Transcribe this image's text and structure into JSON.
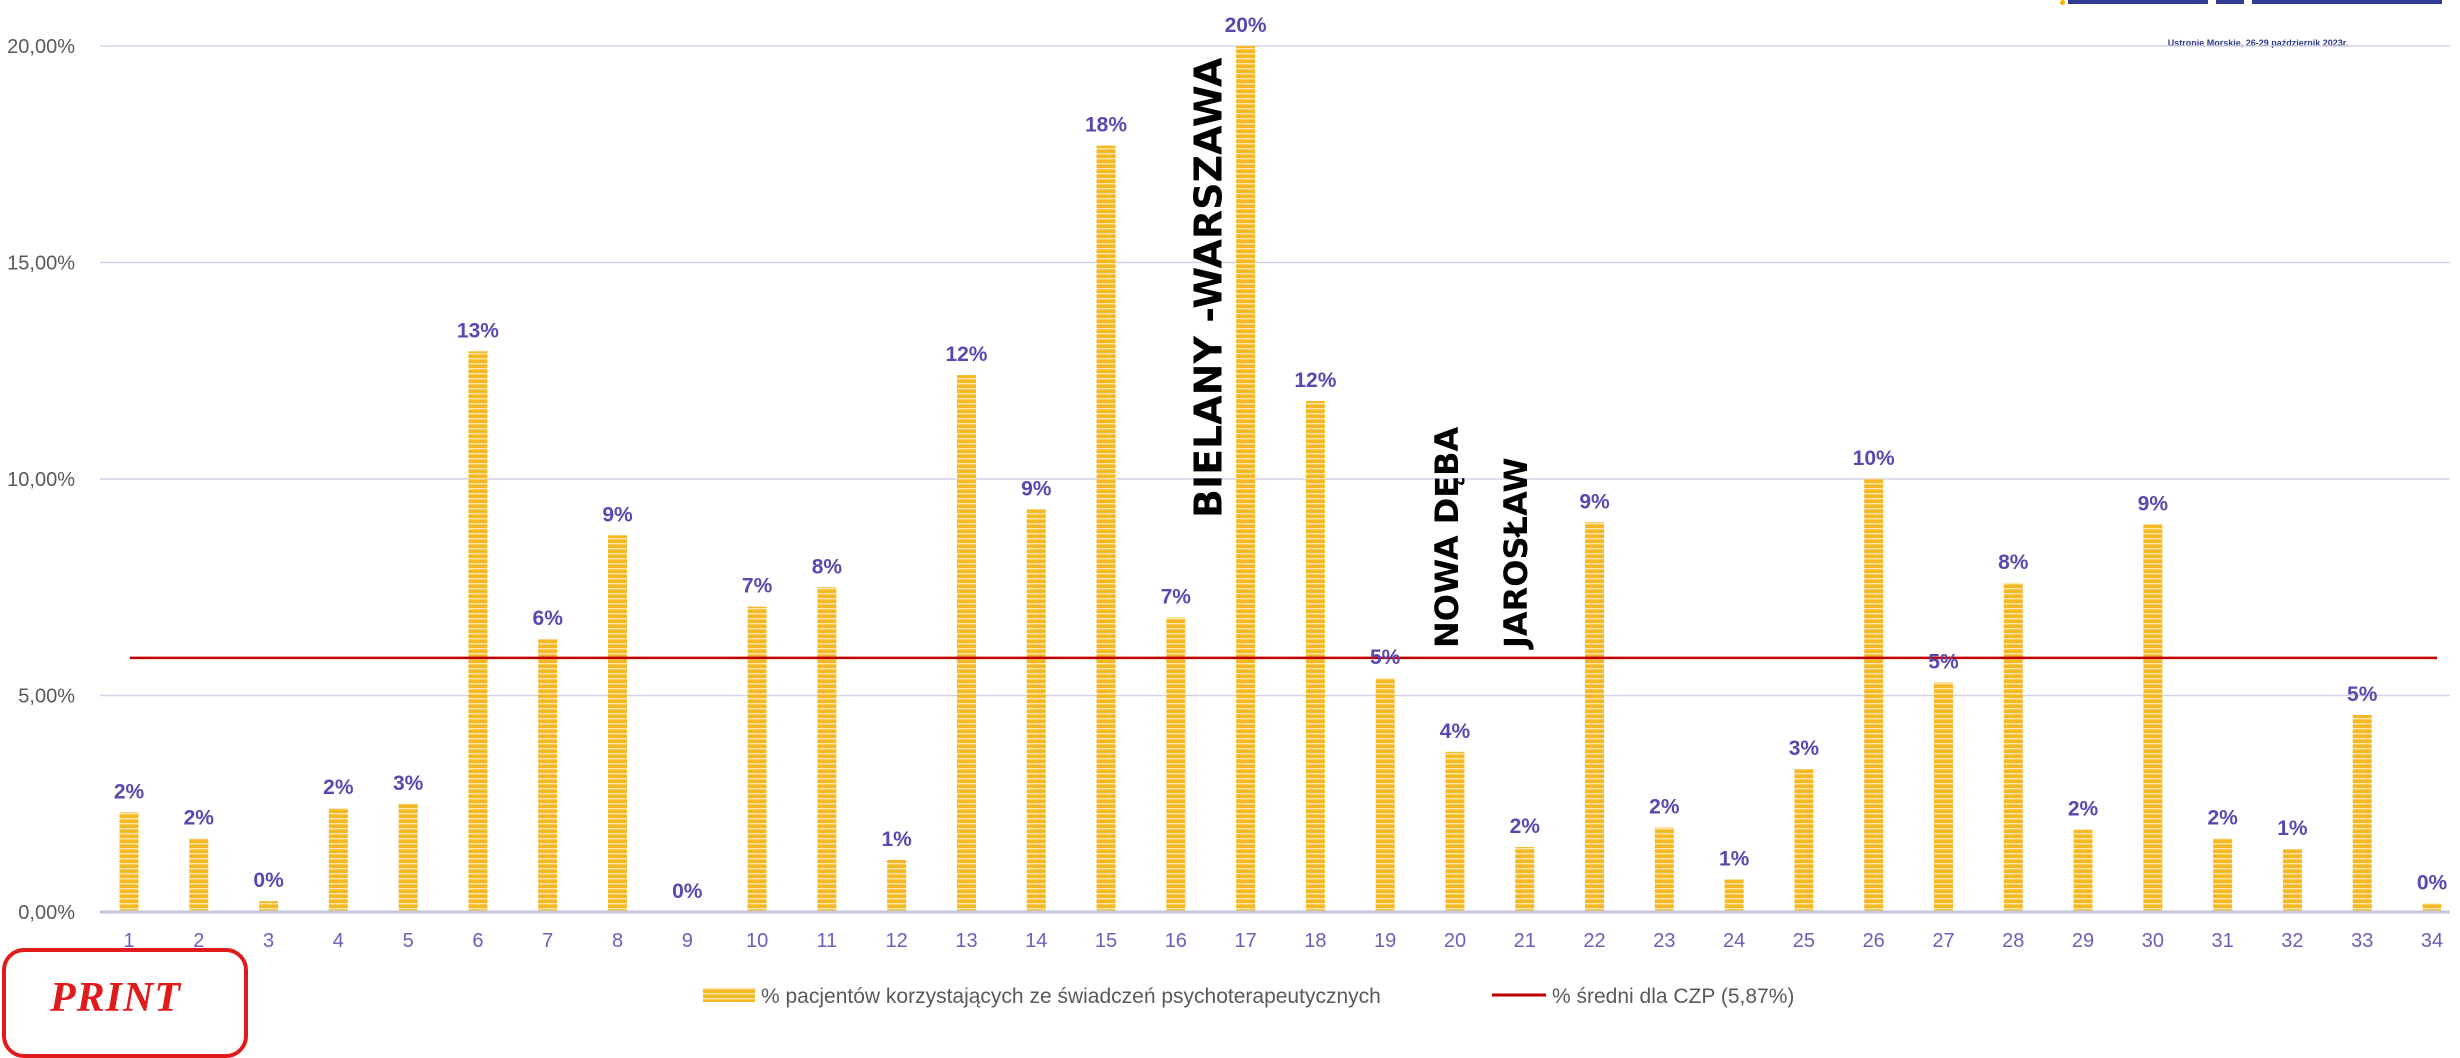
{
  "header": {
    "caption": "Ustronie Morskie, 26-29 październik 2023r."
  },
  "stamp": {
    "text": "PRINT"
  },
  "colors": {
    "bar": "#f4b825",
    "bar_stripe": "#fde7a8",
    "avg_line": "#c00000",
    "grid": "#d3d3e6",
    "axis": "#c6c6dd"
  },
  "chart_data": {
    "type": "bar",
    "categories": [
      "1",
      "2",
      "3",
      "4",
      "5",
      "6",
      "7",
      "8",
      "9",
      "10",
      "11",
      "12",
      "13",
      "14",
      "15",
      "16",
      "17",
      "18",
      "19",
      "20",
      "21",
      "22",
      "23",
      "24",
      "25",
      "26",
      "27",
      "28",
      "29",
      "30",
      "31",
      "32",
      "33",
      "34"
    ],
    "series": [
      {
        "name": "% pacjentów korzystających ze świadczeń psychoterapeutycznych",
        "values": [
          2.3,
          1.7,
          0.25,
          2.4,
          2.5,
          12.95,
          6.3,
          8.7,
          0.0,
          7.05,
          7.5,
          1.2,
          12.4,
          9.3,
          17.7,
          6.8,
          20.0,
          11.8,
          5.4,
          3.7,
          1.5,
          9.0,
          1.95,
          0.75,
          3.3,
          10.0,
          5.3,
          7.6,
          1.9,
          8.95,
          1.7,
          1.45,
          4.55,
          0.2
        ],
        "labels": [
          "2%",
          "2%",
          "0%",
          "2%",
          "3%",
          "13%",
          "6%",
          "9%",
          "0%",
          "7%",
          "8%",
          "1%",
          "12%",
          "9%",
          "18%",
          "7%",
          "20%",
          "12%",
          "5%",
          "4%",
          "2%",
          "9%",
          "2%",
          "1%",
          "3%",
          "10%",
          "5%",
          "8%",
          "2%",
          "9%",
          "2%",
          "1%",
          "5%",
          "0%"
        ]
      }
    ],
    "reference_line": {
      "name": "% średni dla CZP (5,87%)",
      "value": 5.87
    },
    "yticks": [
      "0,00%",
      "5,00%",
      "10,00%",
      "15,00%",
      "20,00%"
    ],
    "ytick_values": [
      0,
      5,
      10,
      15,
      20
    ],
    "ylim": [
      0,
      20
    ],
    "grid": true,
    "legend_position": "bottom",
    "annotations": [
      {
        "text": "BIELANY -WARSZAWA",
        "category": "17"
      },
      {
        "text": "NOWA DĘBA",
        "category": "20"
      },
      {
        "text": "JAROSŁAW",
        "category": "21"
      }
    ]
  }
}
